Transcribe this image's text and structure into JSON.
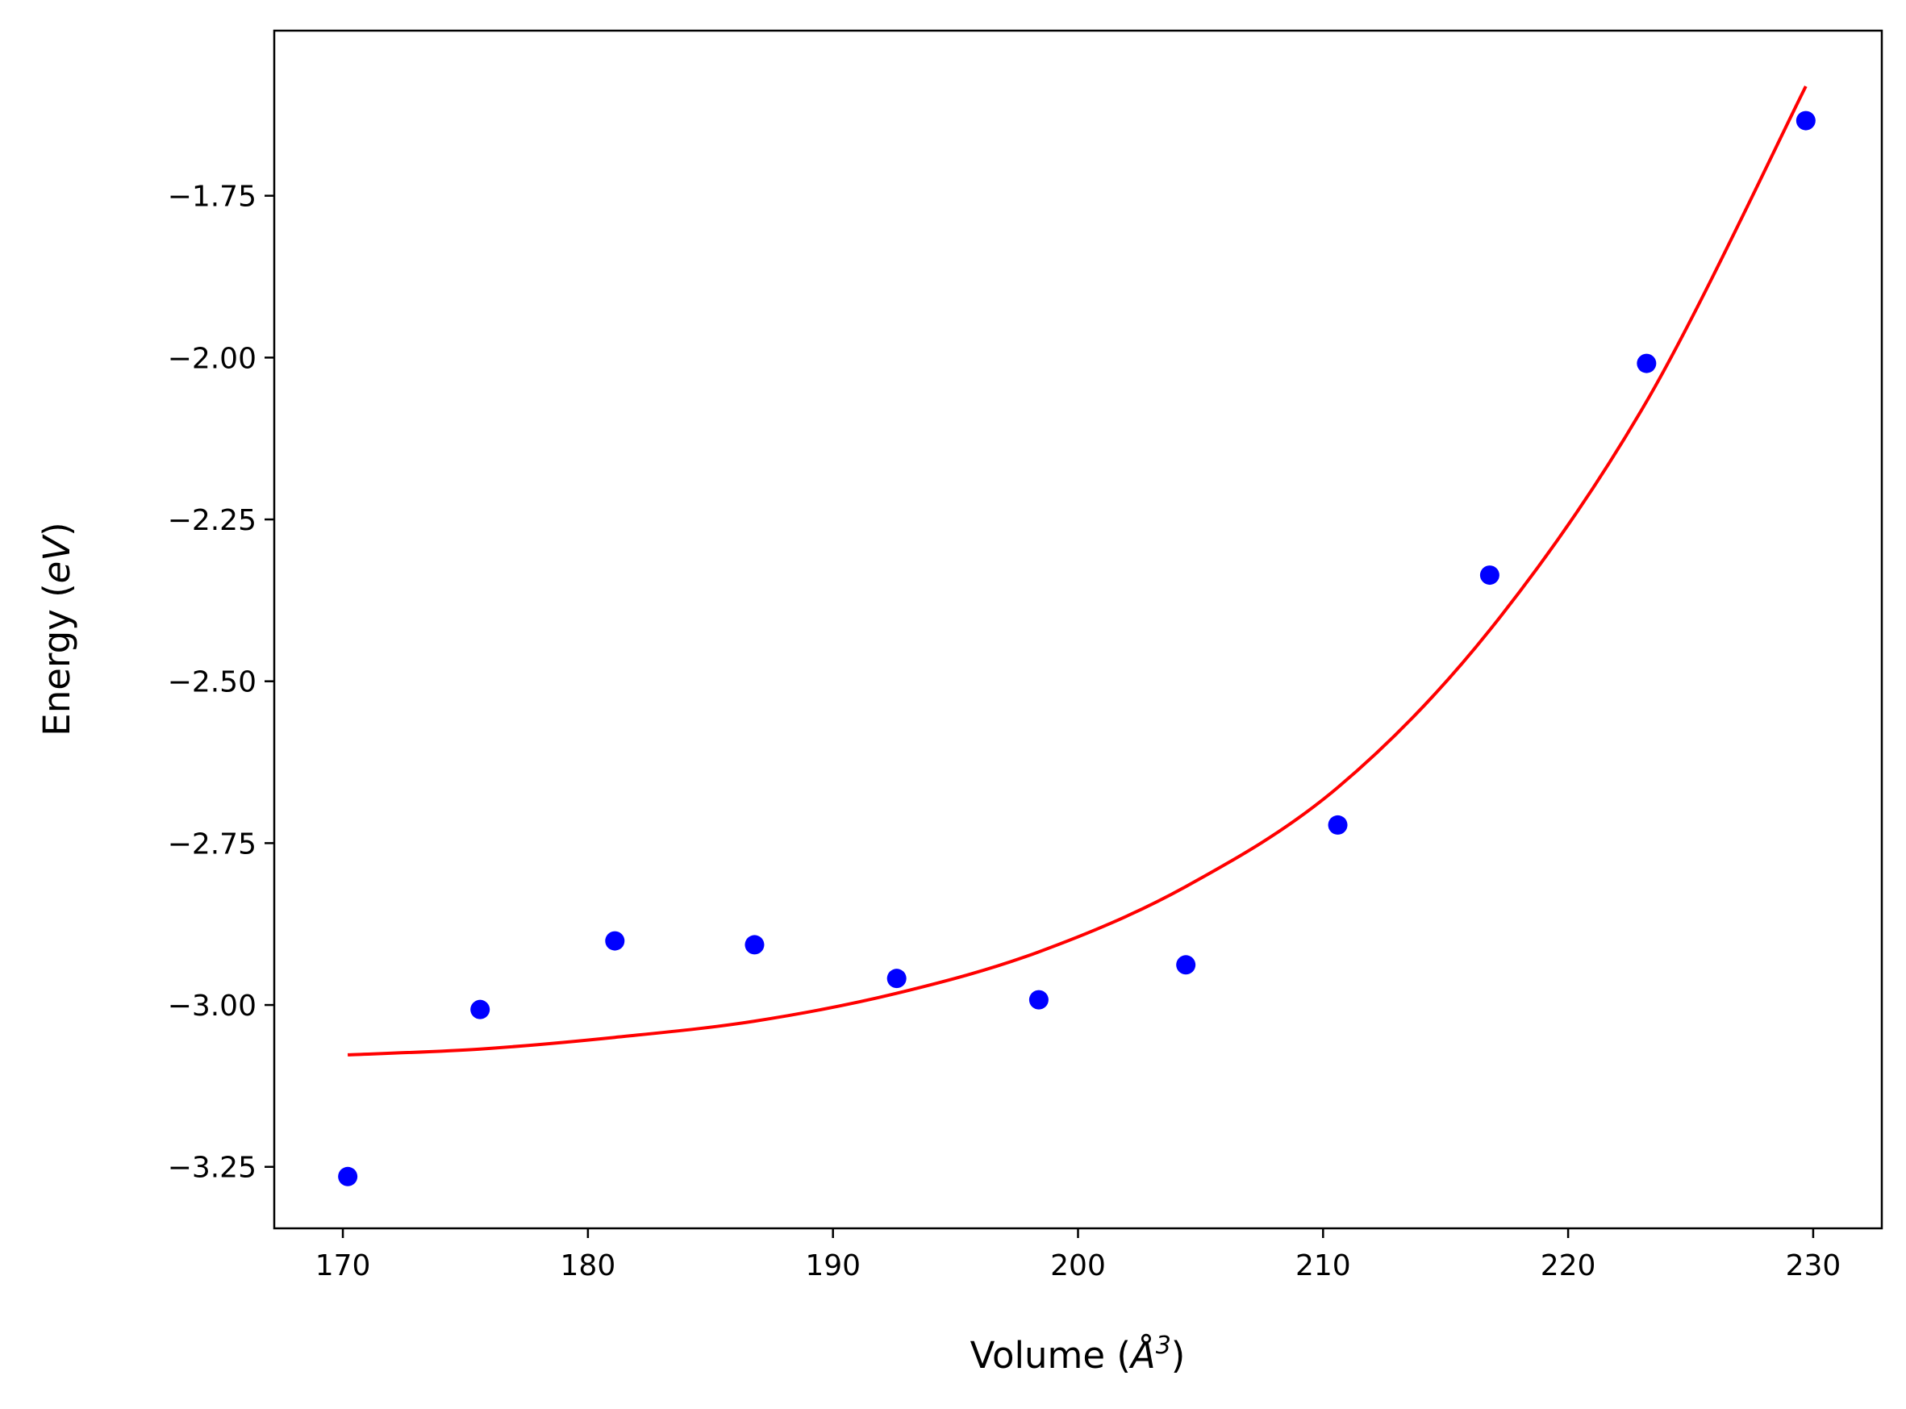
{
  "chart_data": {
    "type": "scatter",
    "title": "",
    "xlabel_parts": [
      "Volume (",
      "Å",
      "3",
      ")"
    ],
    "ylabel_parts": [
      "Energy (",
      "eV",
      ")"
    ],
    "xlim": [
      167.2,
      232.8
    ],
    "ylim": [
      -3.345,
      -1.495
    ],
    "xticks": [
      170,
      180,
      190,
      200,
      210,
      220,
      230
    ],
    "xtick_labels": [
      "170",
      "180",
      "190",
      "200",
      "210",
      "220",
      "230"
    ],
    "yticks": [
      -1.75,
      -2.0,
      -2.25,
      -2.5,
      -2.75,
      -3.0,
      -3.25
    ],
    "ytick_labels": [
      "−1.75",
      "−2.00",
      "−2.25",
      "−2.50",
      "−2.75",
      "−3.00",
      "−3.25"
    ],
    "grid": false,
    "series": [
      {
        "kind": "points",
        "color": "#0000ff",
        "x": [
          170.2,
          175.6,
          181.1,
          186.8,
          192.6,
          198.4,
          204.4,
          210.6,
          216.8,
          223.2,
          229.7
        ],
        "y": [
          -3.265,
          -3.007,
          -2.901,
          -2.907,
          -2.959,
          -2.992,
          -2.938,
          -2.722,
          -2.336,
          -2.009,
          -1.634
        ]
      },
      {
        "kind": "fit-curve",
        "color": "#ff0000",
        "x": [
          170.2,
          175.6,
          181.1,
          186.8,
          192.6,
          198.4,
          204.4,
          210.6,
          216.8,
          223.2,
          229.7
        ],
        "y": [
          -3.077,
          -3.068,
          -3.05,
          -3.025,
          -2.982,
          -2.918,
          -2.817,
          -2.664,
          -2.421,
          -2.068,
          -1.581
        ]
      }
    ]
  }
}
